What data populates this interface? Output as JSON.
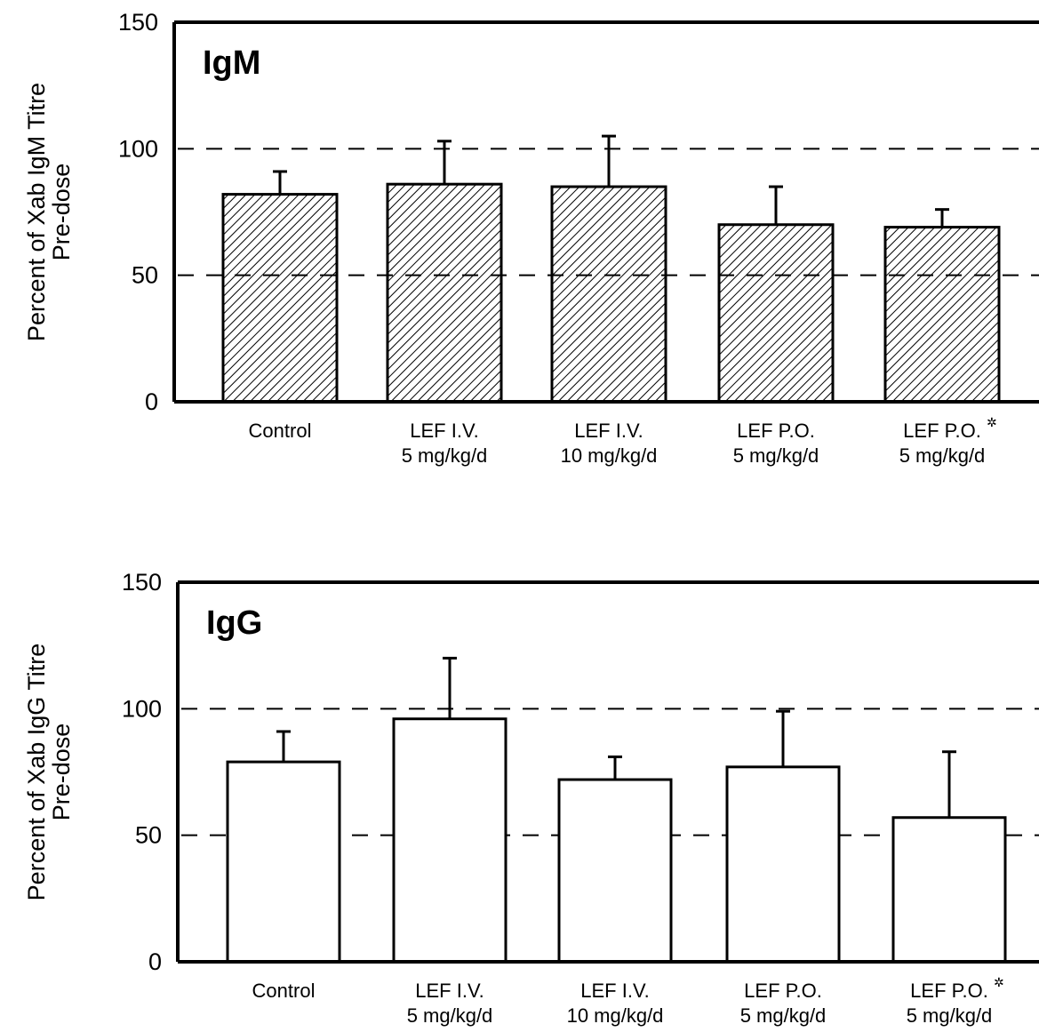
{
  "chart_data": [
    {
      "type": "bar",
      "title": "IgM",
      "ylabel_line1": "Percent of Xab IgM Titre",
      "ylabel_line2": "Pre-dose",
      "ylim": [
        0,
        150
      ],
      "yticks": [
        "0",
        "50",
        "100",
        "150"
      ],
      "reference_lines": [
        50,
        100
      ],
      "bar_fill": "hatched",
      "categories": [
        {
          "line1": "Control",
          "line2": "",
          "mark": ""
        },
        {
          "line1": "LEF I.V.",
          "line2": "5 mg/kg/d",
          "mark": ""
        },
        {
          "line1": "LEF I.V.",
          "line2": "10 mg/kg/d",
          "mark": ""
        },
        {
          "line1": "LEF P.O.",
          "line2": "5 mg/kg/d",
          "mark": ""
        },
        {
          "line1": "LEF P.O.",
          "line2": "5 mg/kg/d",
          "mark": "✲"
        }
      ],
      "values": [
        82,
        86,
        85,
        70,
        69
      ],
      "errors": [
        9,
        17,
        20,
        15,
        7
      ]
    },
    {
      "type": "bar",
      "title": "IgG",
      "ylabel_line1": "Percent of Xab IgG Titre",
      "ylabel_line2": "Pre-dose",
      "ylim": [
        0,
        150
      ],
      "yticks": [
        "0",
        "50",
        "100",
        "150"
      ],
      "reference_lines": [
        50,
        100
      ],
      "bar_fill": "open",
      "categories": [
        {
          "line1": "Control",
          "line2": "",
          "mark": ""
        },
        {
          "line1": "LEF I.V.",
          "line2": "5 mg/kg/d",
          "mark": ""
        },
        {
          "line1": "LEF I.V.",
          "line2": "10 mg/kg/d",
          "mark": ""
        },
        {
          "line1": "LEF P.O.",
          "line2": "5 mg/kg/d",
          "mark": ""
        },
        {
          "line1": "LEF P.O.",
          "line2": "5 mg/kg/d",
          "mark": "✲"
        }
      ],
      "values": [
        79,
        96,
        72,
        77,
        57
      ],
      "errors": [
        12,
        24,
        9,
        22,
        26
      ]
    }
  ]
}
